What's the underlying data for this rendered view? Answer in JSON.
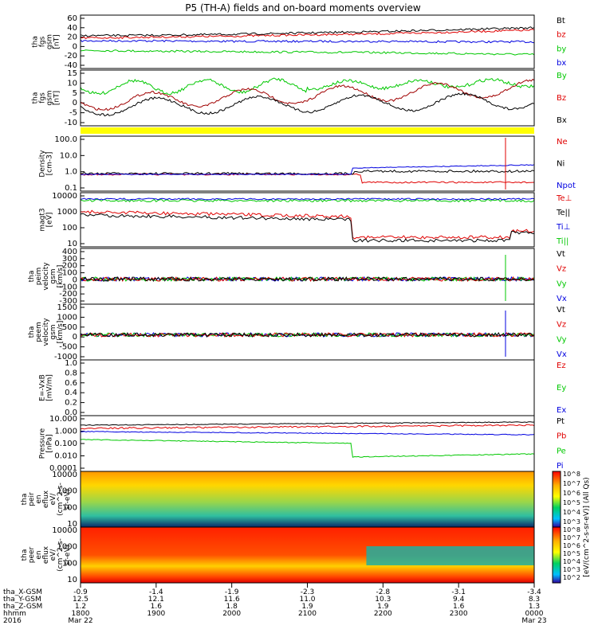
{
  "title": "P5 (TH-A) fields and on-board moments overview",
  "colors": {
    "black": "#000000",
    "red": "#e00000",
    "green": "#00c800",
    "blue": "#0000e0",
    "yellow": "#ffff00"
  },
  "panels": [
    {
      "ylabel": [
        "tha",
        "fgs",
        "gsm",
        "[nT]"
      ],
      "ticks": [
        "60",
        "40",
        "20",
        "0",
        "-20",
        "-40"
      ],
      "legend": [
        {
          "text": "Bt",
          "color": "#000000"
        },
        {
          "text": "bz",
          "color": "#e00000"
        },
        {
          "text": "by",
          "color": "#00c800"
        },
        {
          "text": "bx",
          "color": "#0000e0"
        }
      ]
    },
    {
      "ylabel": [
        "tha",
        "fgs",
        "gsm",
        "[nT]"
      ],
      "ticks": [
        "15",
        "10",
        "5",
        "0",
        "-5",
        "-10"
      ],
      "legend": [
        {
          "text": "By",
          "color": "#00c800"
        },
        {
          "text": "Bz",
          "color": "#e00000"
        },
        {
          "text": "Bx",
          "color": "#000000"
        }
      ]
    },
    {
      "ylabel": [
        "Density",
        "[cm-3]"
      ],
      "ticks": [
        "100.0",
        "10.0",
        "1.0",
        "0.1"
      ],
      "legend": [
        {
          "text": "Ne",
          "color": "#e00000"
        },
        {
          "text": "Ni",
          "color": "#000000"
        },
        {
          "text": "Npot",
          "color": "#0000e0"
        }
      ]
    },
    {
      "ylabel": [
        "magt3",
        "[eV]"
      ],
      "ticks": [
        "10000",
        "1000",
        "100",
        "10"
      ],
      "legend": [
        {
          "text": "Te⊥",
          "color": "#e00000"
        },
        {
          "text": "Te||",
          "color": "#000000"
        },
        {
          "text": "Ti⊥",
          "color": "#0000e0"
        },
        {
          "text": "Ti||",
          "color": "#00c800"
        }
      ]
    },
    {
      "ylabel": [
        "tha",
        "peim",
        "velocity",
        "gsm",
        "[km/s]"
      ],
      "ticks": [
        "400",
        "300",
        "200",
        "100",
        "0",
        "-100",
        "-200",
        "-300"
      ],
      "legend": [
        {
          "text": "Vt",
          "color": "#000000"
        },
        {
          "text": "Vz",
          "color": "#e00000"
        },
        {
          "text": "Vy",
          "color": "#00c800"
        },
        {
          "text": "Vx",
          "color": "#0000e0"
        }
      ]
    },
    {
      "ylabel": [
        "tha",
        "peem",
        "velocity",
        "gsm",
        "[km/s]"
      ],
      "ticks": [
        "1500",
        "1000",
        "500",
        "0",
        "-500",
        "-1000"
      ],
      "legend": [
        {
          "text": "Vt",
          "color": "#000000"
        },
        {
          "text": "Vz",
          "color": "#e00000"
        },
        {
          "text": "Vy",
          "color": "#00c800"
        },
        {
          "text": "Vx",
          "color": "#0000e0"
        }
      ]
    },
    {
      "ylabel": [
        "E=-VxB",
        "[mV/m]"
      ],
      "ticks": [
        "1.0",
        "0.8",
        "0.6",
        "0.4",
        "0.2",
        "0.0"
      ],
      "legend": [
        {
          "text": "Ez",
          "color": "#e00000"
        },
        {
          "text": "Ey",
          "color": "#00c800"
        },
        {
          "text": "Ex",
          "color": "#0000e0"
        }
      ]
    },
    {
      "ylabel": [
        "Pressure",
        "[nPa]"
      ],
      "ticks": [
        "10.000",
        "1.000",
        "0.100",
        "0.010",
        "0.0001"
      ],
      "legend": [
        {
          "text": "Pt",
          "color": "#000000"
        },
        {
          "text": "Pb",
          "color": "#e00000"
        },
        {
          "text": "Pe",
          "color": "#00c800"
        },
        {
          "text": "Pi",
          "color": "#0000e0"
        }
      ]
    },
    {
      "ylabel": [
        "tha",
        "peir",
        "en",
        "eflux",
        "eV/",
        "(cm^2-s-",
        "sr-eV)"
      ],
      "ticks": [
        "10000",
        "1000",
        "100",
        "10"
      ]
    },
    {
      "ylabel": [
        "tha",
        "peer",
        "en",
        "eflux",
        "eV/",
        "(cm^2-s-",
        "sr-eV)"
      ],
      "ticks": [
        "10000",
        "1000",
        "100",
        "10"
      ]
    }
  ],
  "colorbar": {
    "label": "[eV/(cm^2-s-sr-eV)] (All Qs)",
    "ticks_upper": [
      "10^8",
      "10^7",
      "10^6",
      "10^5",
      "10^4",
      "10^3"
    ],
    "ticks_lower": [
      "10^8",
      "10^7",
      "10^6",
      "10^5",
      "10^4",
      "10^3",
      "10^2"
    ]
  },
  "footer": {
    "row_labels": [
      "tha_X-GSM",
      "tha_Y-GSM",
      "tha_Z-GSM",
      "hhmm",
      "2016"
    ],
    "columns": [
      {
        "x": "-0.9",
        "y": "12.5",
        "z": "1.2",
        "hhmm": "1800",
        "date": "Mar 22"
      },
      {
        "x": "-1.4",
        "y": "12.1",
        "z": "1.6",
        "hhmm": "1900",
        "date": ""
      },
      {
        "x": "-1.9",
        "y": "11.6",
        "z": "1.8",
        "hhmm": "2000",
        "date": ""
      },
      {
        "x": "-2.3",
        "y": "11.0",
        "z": "1.9",
        "hhmm": "2100",
        "date": ""
      },
      {
        "x": "-2.8",
        "y": "10.3",
        "z": "1.9",
        "hhmm": "2200",
        "date": ""
      },
      {
        "x": "-3.1",
        "y": "9.4",
        "z": "1.6",
        "hhmm": "2300",
        "date": ""
      },
      {
        "x": "-3.4",
        "y": "8.3",
        "z": "1.3",
        "hhmm": "0000",
        "date": "Mar 23"
      }
    ]
  },
  "chart_data": {
    "type": "line",
    "title": "P5 (TH-A) fields and on-board moments overview",
    "x": [
      "1800",
      "1900",
      "2000",
      "2100",
      "2200",
      "2300",
      "0000"
    ],
    "series": [
      {
        "name": "Bt",
        "values": [
          23,
          24,
          26,
          29,
          32,
          36,
          40
        ]
      },
      {
        "name": "bz",
        "values": [
          18,
          20,
          22,
          25,
          27,
          31,
          35
        ]
      },
      {
        "name": "by",
        "values": [
          -8,
          -10,
          -11,
          -12,
          -13,
          -15,
          -17
        ]
      },
      {
        "name": "bx",
        "values": [
          12,
          12,
          11,
          11,
          11,
          10,
          10
        ]
      }
    ]
  }
}
